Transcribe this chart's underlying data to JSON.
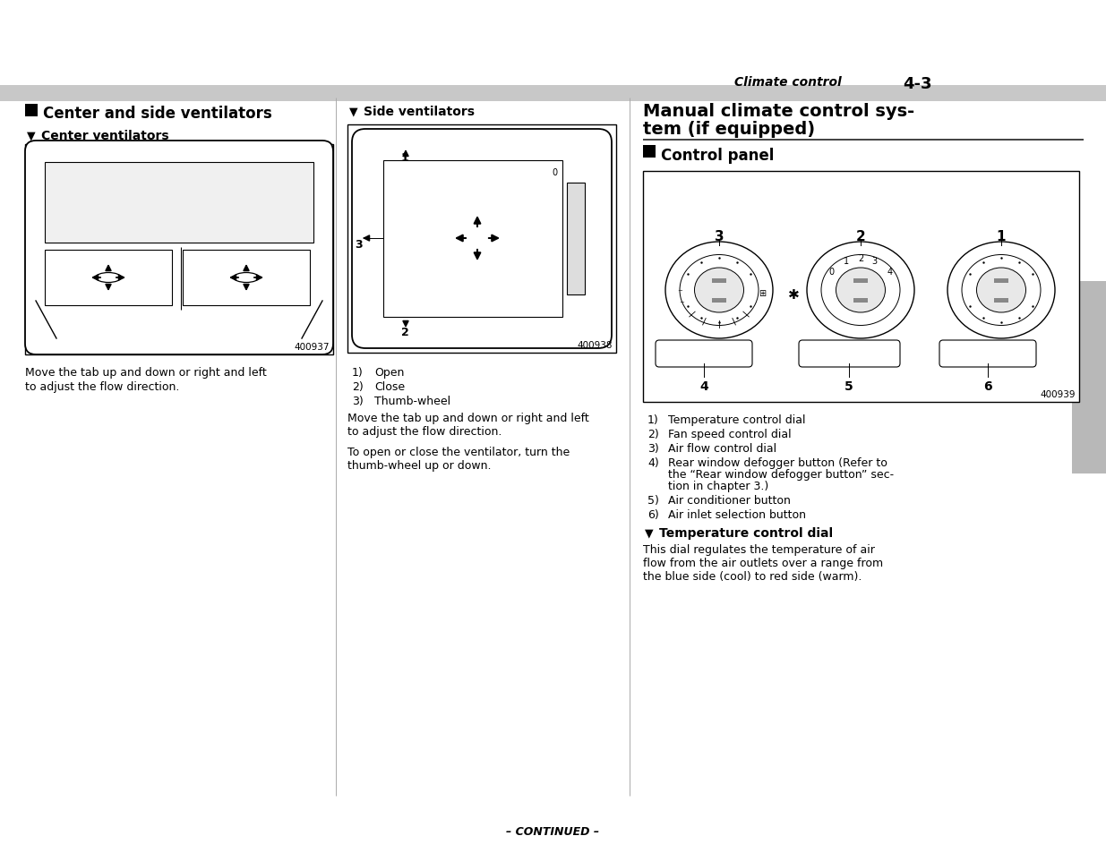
{
  "page_bg": "#ffffff",
  "header_text": "Climate control",
  "header_page": "4-3",
  "footer_text": "– CONTINUED –",
  "col1_title": "Center and side ventilators",
  "col1_sub": "Center ventilators",
  "col1_caption": "Move the tab up and down or right and left\nto adjust the flow direction.",
  "col1_img_label": "400937",
  "col2_title": "Side ventilators",
  "col2_items": [
    [
      "1)",
      "Open"
    ],
    [
      "2)",
      "Close"
    ],
    [
      "3)",
      "Thumb-wheel"
    ]
  ],
  "col2_caption1": "Move the tab up and down or right and left\nto adjust the flow direction.",
  "col2_caption2": "To open or close the ventilator, turn the\nthumb-wheel up or down.",
  "col2_img_label": "400938",
  "col3_title_line1": "Manual climate control sys-",
  "col3_title_line2": "tem (if equipped)",
  "col3_sub": "Control panel",
  "col3_items": [
    [
      "1)",
      "Temperature control dial"
    ],
    [
      "2)",
      "Fan speed control dial"
    ],
    [
      "3)",
      "Air flow control dial"
    ],
    [
      "4)",
      "Rear window defogger button (Refer to\nthe “Rear window defogger button” sec-\ntion in chapter 3.)"
    ],
    [
      "5)",
      "Air conditioner button"
    ],
    [
      "6)",
      "Air inlet selection button"
    ]
  ],
  "col3_img_label": "400939",
  "col3_sub2": "Temperature control dial",
  "col3_body2": "This dial regulates the temperature of air\nflow from the air outlets over a range from\nthe blue side (cool) to red side (warm).",
  "header_gray": "#c8c8c8",
  "col_div_color": "#aaaaaa",
  "gray_tab": "#b8b8b8"
}
